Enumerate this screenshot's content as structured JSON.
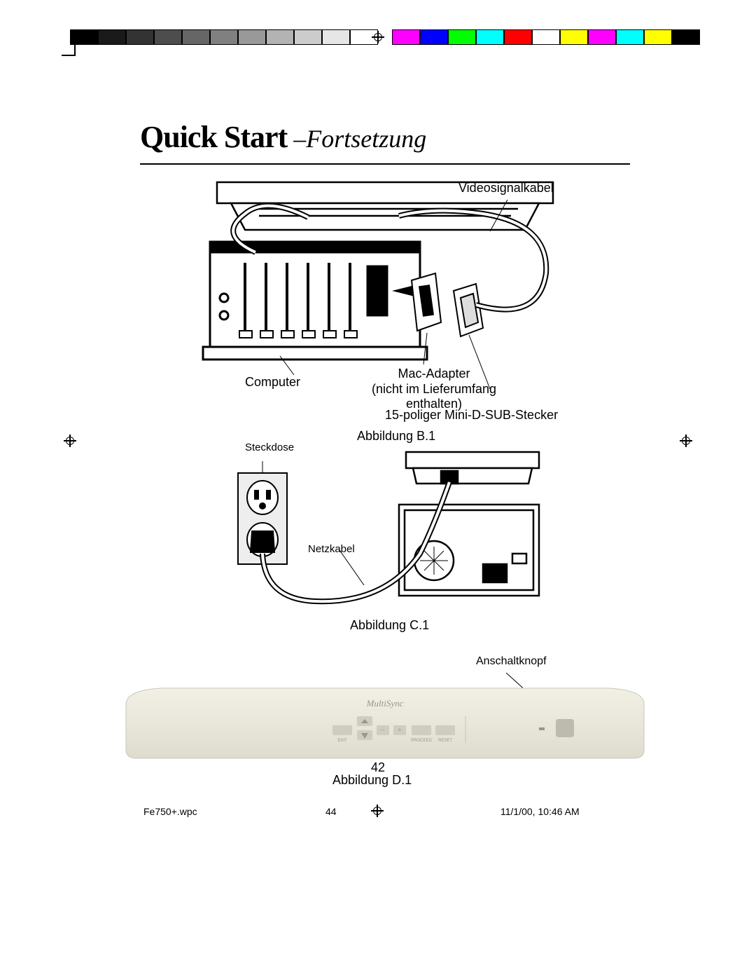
{
  "print_strips": {
    "grayscale": [
      "#000000",
      "#1a1a1a",
      "#333333",
      "#4d4d4d",
      "#666666",
      "#808080",
      "#999999",
      "#b3b3b3",
      "#cccccc",
      "#e6e6e6",
      "#ffffff"
    ],
    "color": [
      "#ff00ff",
      "#0000ff",
      "#00ff00",
      "#00ffff",
      "#ff0000",
      "#ffffff",
      "#ffff00",
      "#ff00ff",
      "#00ffff",
      "#ffff00",
      "#000000"
    ]
  },
  "heading": {
    "bold": "Quick Start",
    "italic": " –Fortsetzung"
  },
  "figureB": {
    "labels": {
      "video_cable": "Videosignalkabel",
      "computer": "Computer",
      "mac_adapter_l1": "Mac-Adapter",
      "mac_adapter_l2": "(nicht im Lieferumfang",
      "mac_adapter_l3": "enthalten)",
      "dsub": "15-poliger Mini-D-SUB-Stecker"
    },
    "caption": "Abbildung B.1",
    "colors": {
      "cable_stroke": "#000000",
      "line_stroke": "#000000",
      "fill_light": "#ffffff"
    }
  },
  "figureC": {
    "labels": {
      "outlet": "Steckdose",
      "power_cable": "Netzkabel"
    },
    "caption": "Abbildung C.1",
    "colors": {
      "outlet_fill": "#e8e8e8"
    }
  },
  "figureD": {
    "labels": {
      "power_button": "Anschaltknopf"
    },
    "caption": "Abbildung D.1",
    "front_text": {
      "brand": "MultiSync",
      "exit": "EXIT",
      "proceed": "PROCEED",
      "reset": "RESET"
    },
    "colors": {
      "body": "#e9e7da",
      "body_edge": "#d6d4c6",
      "btn": "#cfccc0",
      "btn_dark": "#bdbaae",
      "text": "#9a978a"
    }
  },
  "page_number": "42",
  "footer": {
    "file": "Fe750+.wpc",
    "sheet": "44",
    "timestamp": "11/1/00, 10:46 AM"
  }
}
